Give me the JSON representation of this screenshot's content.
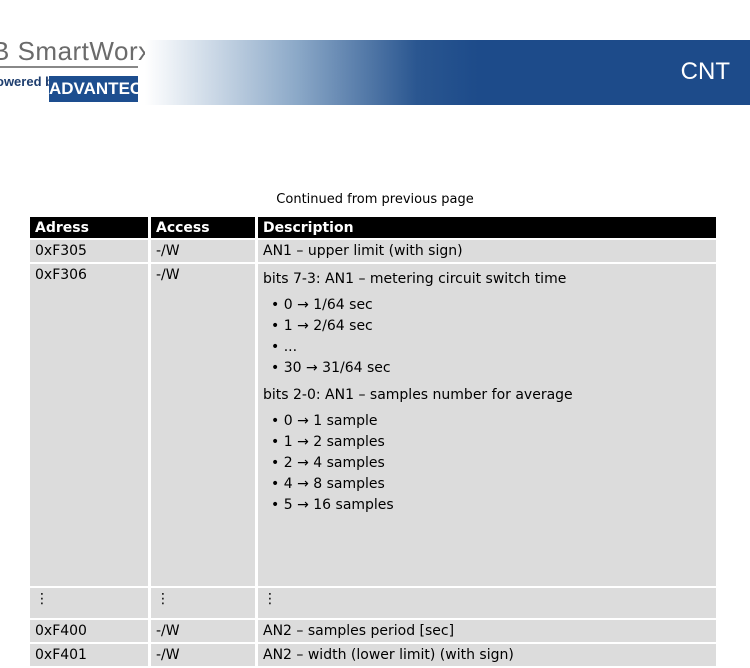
{
  "header": {
    "logo_brand": "B SmartWorx",
    "logo_powered": "owered by",
    "logo_advantech": "ADVANTECH",
    "section_title": "CNT"
  },
  "continued": "Continued from previous page",
  "table": {
    "columns": [
      "Adress",
      "Access",
      "Description"
    ],
    "rows": [
      {
        "address": "0xF305",
        "access": "-/W",
        "description": "AN1 – upper limit (with sign)"
      },
      {
        "address": "0xF306",
        "access": "-/W",
        "para1": "bits 7-3: AN1 – metering circuit switch time",
        "list1": [
          "0 → 1/64 sec",
          "1 → 2/64 sec",
          "...",
          "30 → 31/64 sec"
        ],
        "para2": "bits 2-0: AN1 – samples number for average",
        "list2": [
          "0 → 1 sample",
          "1 → 2 samples",
          "2 → 4 samples",
          "4 → 8 samples",
          "5 → 16 samples"
        ]
      },
      {
        "address": "⋮",
        "access": "⋮",
        "description": "⋮"
      },
      {
        "address": "0xF400",
        "access": "-/W",
        "description": "AN2 – samples period [sec]"
      },
      {
        "address": "0xF401",
        "access": "-/W",
        "description": "AN2 – width (lower limit) (with sign)"
      }
    ]
  }
}
